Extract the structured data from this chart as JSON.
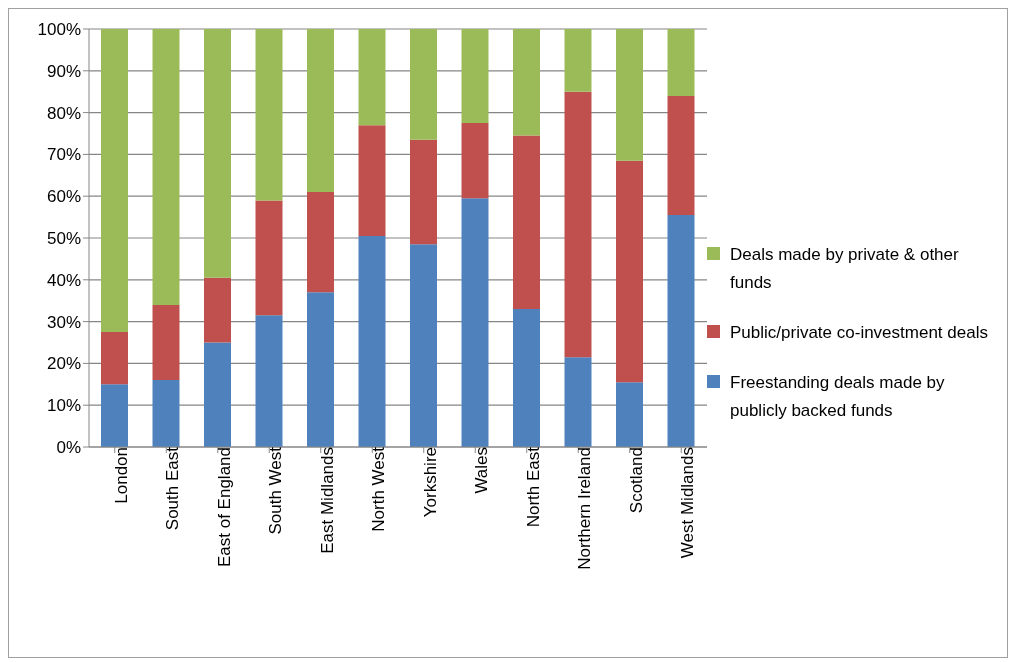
{
  "chart_data": {
    "type": "bar",
    "stacked": true,
    "categories": [
      "London",
      "South East",
      "East of England",
      "South West",
      "East Midlands",
      "North West",
      "Yorkshire",
      "Wales",
      "North East",
      "Northern Ireland",
      "Scotland",
      "West Midlands"
    ],
    "series": [
      {
        "name": "Freestanding deals made by publicly backed funds",
        "color": "#4f81bd",
        "values": [
          15,
          16,
          25,
          31.5,
          37,
          50.5,
          48.5,
          59.5,
          33,
          21.5,
          15.5,
          55.5
        ]
      },
      {
        "name": "Public/private co-investment deals",
        "color": "#c0504d",
        "values": [
          12.5,
          18,
          15.5,
          27.5,
          24,
          26.5,
          25,
          18,
          41.5,
          63.5,
          53,
          28.5
        ]
      },
      {
        "name": "Deals made by private & other funds",
        "color": "#9bbb59",
        "values": [
          72.5,
          66,
          59.5,
          41,
          39,
          23,
          26.5,
          22.5,
          25.5,
          15,
          31.5,
          16
        ]
      }
    ],
    "ylim": [
      0,
      100
    ],
    "yticks": [
      {
        "value": 0,
        "label": "0%"
      },
      {
        "value": 10,
        "label": "10%"
      },
      {
        "value": 20,
        "label": "20%"
      },
      {
        "value": 30,
        "label": "30%"
      },
      {
        "value": 40,
        "label": "40%"
      },
      {
        "value": 50,
        "label": "50%"
      },
      {
        "value": 60,
        "label": "60%"
      },
      {
        "value": 70,
        "label": "70%"
      },
      {
        "value": 80,
        "label": "80%"
      },
      {
        "value": 90,
        "label": "90%"
      },
      {
        "value": 100,
        "label": "100%"
      }
    ],
    "grid": "y",
    "legend": "right"
  }
}
